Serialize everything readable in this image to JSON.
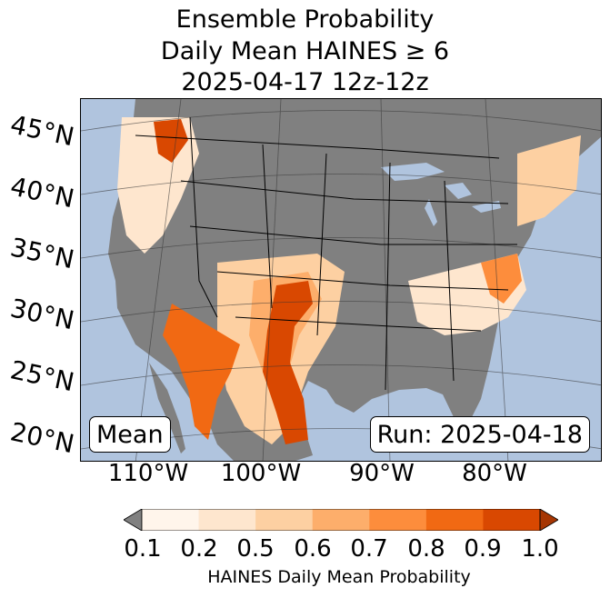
{
  "title": {
    "line1": "Ensemble Probability",
    "line2": "Daily Mean HAINES ≥ 6",
    "line3": "2025-04-17 12z-12z"
  },
  "map": {
    "latitude_labels": [
      "45°N",
      "40°N",
      "35°N",
      "30°N",
      "25°N",
      "20°N"
    ],
    "longitude_labels": [
      "110°W",
      "100°W",
      "90°W",
      "80°W"
    ],
    "land_color": "#808080",
    "ocean_color": "#b0c4de",
    "mean_label": "Mean",
    "run_label": "Run: 2025-04-18"
  },
  "colorbar": {
    "ticks": [
      "0.1",
      "0.2",
      "0.5",
      "0.6",
      "0.7",
      "0.8",
      "0.9",
      "1.0"
    ],
    "colors": [
      "#fff5eb",
      "#fee6ce",
      "#fdd0a2",
      "#fdae6b",
      "#fd8d3c",
      "#f16913",
      "#d94801"
    ],
    "under_color": "#808080",
    "over_color": "#a63603",
    "label": "HAINES Daily Mean Probability"
  }
}
